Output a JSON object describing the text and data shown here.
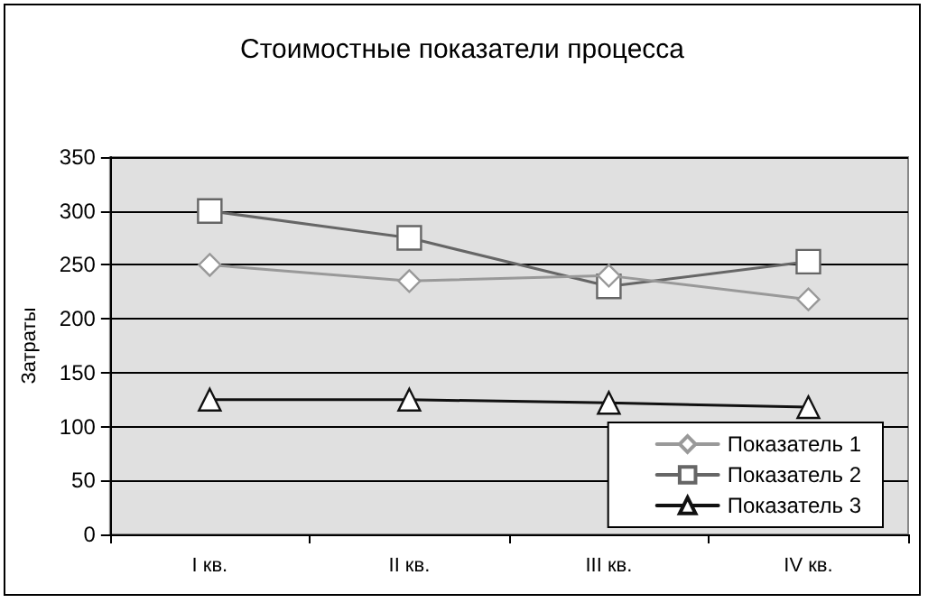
{
  "chart_data": {
    "type": "line",
    "title": "Стоимостные показатели процесса",
    "ylabel": "Затраты",
    "categories": [
      "I кв.",
      "II кв.",
      "III кв.",
      "IV кв."
    ],
    "series": [
      {
        "name": "Показатель 1",
        "color": "#999999",
        "marker": "diamond",
        "values": [
          250,
          235,
          240,
          218
        ]
      },
      {
        "name": "Показатель 2",
        "color": "#666666",
        "marker": "square",
        "values": [
          300,
          275,
          230,
          253
        ]
      },
      {
        "name": "Показатель 3",
        "color": "#111111",
        "marker": "triangle",
        "values": [
          125,
          125,
          122,
          118
        ]
      }
    ],
    "ylim": [
      0,
      350
    ],
    "yticks": [
      0,
      50,
      100,
      150,
      200,
      250,
      300,
      350
    ],
    "grid": "y",
    "legend": "bottom right",
    "line_style": "solid"
  }
}
